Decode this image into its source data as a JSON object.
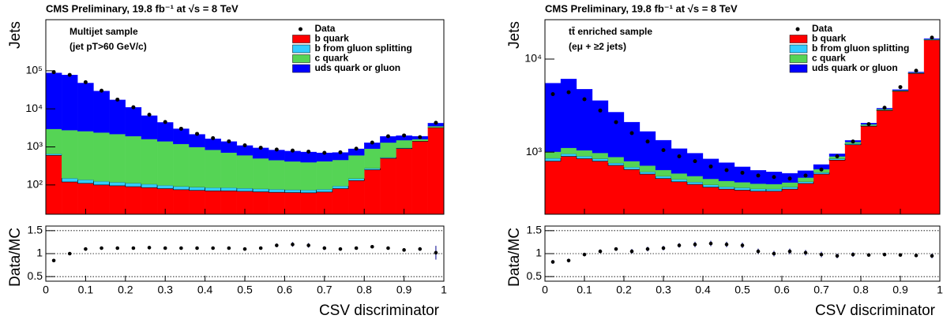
{
  "chart_data": [
    {
      "type": "stacked_histogram",
      "title": "CMS Preliminary, 19.8 fb⁻¹ at √s = 8 TeV",
      "annotations": [
        "Multijet sample",
        "(jet pT>60 GeV/c)"
      ],
      "ylabel": "Jets",
      "log_scale": true,
      "legend": "upper right",
      "bins": [
        0,
        0.04,
        0.08,
        0.12,
        0.16,
        0.2,
        0.24,
        0.28,
        0.32,
        0.36,
        0.4,
        0.44,
        0.48,
        0.52,
        0.56,
        0.6,
        0.64,
        0.68,
        0.72,
        0.76,
        0.8,
        0.84,
        0.88,
        0.92,
        0.96,
        1
      ],
      "xlim": [
        0,
        1
      ],
      "xticks": [
        0,
        0.1,
        0.2,
        0.3,
        0.4,
        0.5,
        0.6,
        0.7,
        0.8,
        0.9,
        1
      ],
      "ylim": [
        17,
        2200000
      ],
      "yticks": [
        {
          "value": 100,
          "label": "10²"
        },
        {
          "value": 1000,
          "label": "10³"
        },
        {
          "value": 10000,
          "label": "10⁴"
        },
        {
          "value": 100000,
          "label": "10⁵"
        }
      ],
      "data": {
        "name": "Data",
        "values": [
          92000,
          78000,
          50000,
          30000,
          17500,
          11000,
          7000,
          4500,
          3000,
          2200,
          1700,
          1400,
          1100,
          950,
          850,
          800,
          750,
          700,
          720,
          900,
          1300,
          1900,
          2000,
          1800,
          4300
        ]
      },
      "series": [
        {
          "name": "b quark",
          "color": "#ff0000",
          "values": [
            600,
            120,
            110,
            100,
            95,
            90,
            85,
            80,
            75,
            72,
            70,
            70,
            68,
            66,
            64,
            63,
            62,
            65,
            80,
            130,
            250,
            500,
            900,
            1400,
            3200
          ]
        },
        {
          "name": "b from gluon splitting",
          "color": "#33ccff",
          "values": [
            60,
            30,
            28,
            25,
            23,
            22,
            20,
            18,
            17,
            16,
            15,
            15,
            14,
            13,
            13,
            12,
            12,
            12,
            14,
            18,
            25,
            30,
            40,
            30,
            50
          ]
        },
        {
          "name": "c quark",
          "color": "#55d455",
          "values": [
            2300,
            2600,
            2450,
            2250,
            2050,
            1800,
            1500,
            1300,
            1100,
            900,
            750,
            620,
            520,
            420,
            370,
            340,
            320,
            340,
            360,
            450,
            620,
            770,
            560,
            170,
            250
          ]
        },
        {
          "name": "uds quark or gluon",
          "color": "#0000ff",
          "values": [
            85000,
            75000,
            45000,
            27000,
            15000,
            9000,
            5000,
            3000,
            1800,
            1150,
            800,
            680,
            480,
            440,
            380,
            360,
            340,
            280,
            260,
            290,
            390,
            590,
            480,
            300,
            700
          ]
        }
      ]
    },
    {
      "type": "scatter",
      "ylabel": "Data/MC",
      "xlabel": "CSV discriminator",
      "grid": true,
      "color": "#000000",
      "xlim": [
        0,
        1
      ],
      "xticks": [
        0,
        0.1,
        0.2,
        0.3,
        0.4,
        0.5,
        0.6,
        0.7,
        0.8,
        0.9,
        1
      ],
      "ylim": [
        0.4,
        1.6
      ],
      "yticks": [
        0.5,
        1,
        1.5
      ],
      "x": [
        0.02,
        0.06,
        0.1,
        0.14,
        0.18,
        0.22,
        0.26,
        0.3,
        0.34,
        0.38,
        0.42,
        0.46,
        0.5,
        0.54,
        0.58,
        0.62,
        0.66,
        0.7,
        0.74,
        0.78,
        0.82,
        0.86,
        0.9,
        0.94,
        0.98
      ],
      "values": [
        0.85,
        1.0,
        1.1,
        1.12,
        1.12,
        1.12,
        1.13,
        1.12,
        1.12,
        1.12,
        1.12,
        1.12,
        1.1,
        1.12,
        1.18,
        1.2,
        1.18,
        1.12,
        1.1,
        1.12,
        1.15,
        1.12,
        1.08,
        1.1,
        1.02
      ],
      "errors": [
        0.02,
        0.02,
        0.02,
        0.02,
        0.02,
        0.02,
        0.02,
        0.02,
        0.02,
        0.02,
        0.02,
        0.02,
        0.02,
        0.02,
        0.04,
        0.05,
        0.05,
        0.04,
        0.03,
        0.03,
        0.03,
        0.03,
        0.03,
        0.04,
        0.15
      ]
    },
    {
      "type": "stacked_histogram",
      "title": "CMS Preliminary, 19.8 fb⁻¹ at √s = 8 TeV",
      "annotations": [
        "tt̄ enriched sample",
        "(eμ + ≥2 jets)"
      ],
      "ylabel": "Jets",
      "log_scale": true,
      "legend": "upper right",
      "bins": [
        0,
        0.04,
        0.08,
        0.12,
        0.16,
        0.2,
        0.24,
        0.28,
        0.32,
        0.36,
        0.4,
        0.44,
        0.48,
        0.52,
        0.56,
        0.6,
        0.64,
        0.68,
        0.72,
        0.76,
        0.8,
        0.84,
        0.88,
        0.92,
        0.96,
        1
      ],
      "xlim": [
        0,
        1
      ],
      "xticks": [
        0,
        0.1,
        0.2,
        0.3,
        0.4,
        0.5,
        0.6,
        0.7,
        0.8,
        0.9,
        1
      ],
      "ylim": [
        215,
        26500
      ],
      "yticks": [
        {
          "value": 1000,
          "label": "10³"
        },
        {
          "value": 10000,
          "label": "10⁴"
        }
      ],
      "data": {
        "name": "Data",
        "values": [
          4200,
          4400,
          3700,
          2800,
          2100,
          1600,
          1300,
          1050,
          900,
          800,
          700,
          640,
          600,
          560,
          540,
          520,
          560,
          650,
          900,
          1300,
          2000,
          3000,
          5000,
          7500,
          17000
        ]
      },
      "series": [
        {
          "name": "b quark",
          "color": "#ff0000",
          "values": [
            800,
            900,
            850,
            800,
            720,
            650,
            580,
            520,
            480,
            450,
            420,
            400,
            390,
            380,
            380,
            400,
            460,
            580,
            820,
            1200,
            1900,
            2800,
            4500,
            7000,
            16000
          ]
        },
        {
          "name": "b from gluon splitting",
          "color": "#33ccff",
          "values": [
            60,
            60,
            55,
            50,
            45,
            40,
            35,
            32,
            30,
            28,
            26,
            25,
            24,
            23,
            22,
            22,
            22,
            25,
            30,
            35,
            40,
            45,
            50,
            60,
            80
          ]
        },
        {
          "name": "c quark",
          "color": "#55d455",
          "values": [
            150,
            150,
            140,
            130,
            120,
            110,
            100,
            90,
            80,
            75,
            70,
            65,
            60,
            55,
            52,
            50,
            50,
            50,
            50,
            50,
            50,
            55,
            60,
            80,
            200
          ]
        },
        {
          "name": "uds quark or gluon",
          "color": "#0000ff",
          "values": [
            4500,
            5000,
            3700,
            2600,
            1800,
            1300,
            950,
            700,
            500,
            420,
            330,
            280,
            220,
            180,
            160,
            120,
            100,
            80,
            60,
            50,
            60,
            60,
            80,
            120,
            300
          ]
        }
      ]
    },
    {
      "type": "scatter",
      "ylabel": "Data/MC",
      "xlabel": "CSV discriminator",
      "grid": true,
      "color": "#000000",
      "xlim": [
        0,
        1
      ],
      "xticks": [
        0,
        0.1,
        0.2,
        0.3,
        0.4,
        0.5,
        0.6,
        0.7,
        0.8,
        0.9,
        1
      ],
      "ylim": [
        0.4,
        1.6
      ],
      "yticks": [
        0.5,
        1,
        1.5
      ],
      "x": [
        0.02,
        0.06,
        0.1,
        0.14,
        0.18,
        0.22,
        0.26,
        0.3,
        0.34,
        0.38,
        0.42,
        0.46,
        0.5,
        0.54,
        0.58,
        0.62,
        0.66,
        0.7,
        0.74,
        0.78,
        0.82,
        0.86,
        0.9,
        0.94,
        0.98
      ],
      "values": [
        0.82,
        0.85,
        0.98,
        1.05,
        1.1,
        1.05,
        1.1,
        1.12,
        1.18,
        1.2,
        1.22,
        1.2,
        1.18,
        1.05,
        1.0,
        1.05,
        1.02,
        0.98,
        0.95,
        0.98,
        0.97,
        0.98,
        0.97,
        0.96,
        0.95
      ],
      "errors": [
        0.04,
        0.04,
        0.04,
        0.04,
        0.04,
        0.05,
        0.05,
        0.05,
        0.05,
        0.06,
        0.06,
        0.06,
        0.06,
        0.06,
        0.06,
        0.06,
        0.06,
        0.06,
        0.05,
        0.05,
        0.04,
        0.04,
        0.03,
        0.03,
        0.05
      ]
    }
  ]
}
